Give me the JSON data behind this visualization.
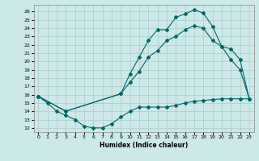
{
  "xlabel": "Humidex (Indice chaleur)",
  "bg_color": "#cce8e8",
  "grid_color": "#aacccc",
  "line_color": "#006666",
  "xlim": [
    -0.5,
    23.5
  ],
  "ylim": [
    11.5,
    26.8
  ],
  "xticks": [
    0,
    1,
    2,
    3,
    4,
    5,
    6,
    7,
    8,
    9,
    10,
    11,
    12,
    13,
    14,
    15,
    16,
    17,
    18,
    19,
    20,
    21,
    22,
    23
  ],
  "yticks": [
    12,
    13,
    14,
    15,
    16,
    17,
    18,
    19,
    20,
    21,
    22,
    23,
    24,
    25,
    26
  ],
  "line1_x": [
    0,
    1,
    2,
    3,
    4,
    5,
    6,
    7,
    8,
    9,
    10,
    11,
    12,
    13,
    14,
    15,
    16,
    17,
    18,
    19,
    20,
    21,
    22,
    23
  ],
  "line1_y": [
    15.8,
    15.0,
    14.0,
    13.5,
    13.0,
    12.2,
    12.0,
    12.0,
    12.5,
    13.3,
    14.0,
    14.5,
    14.5,
    14.5,
    14.5,
    14.7,
    15.0,
    15.2,
    15.3,
    15.4,
    15.5,
    15.5,
    15.5,
    15.5
  ],
  "line2_x": [
    0,
    3,
    9,
    10,
    11,
    12,
    13,
    14,
    15,
    16,
    17,
    18,
    19,
    20,
    21,
    22,
    23
  ],
  "line2_y": [
    15.8,
    14.0,
    16.1,
    18.5,
    20.5,
    22.5,
    23.8,
    23.8,
    25.3,
    25.7,
    26.2,
    25.8,
    24.2,
    21.8,
    20.2,
    19.0,
    15.5
  ],
  "line3_x": [
    0,
    3,
    9,
    10,
    11,
    12,
    13,
    14,
    15,
    16,
    17,
    18,
    19,
    20,
    21,
    22,
    23
  ],
  "line3_y": [
    15.8,
    14.0,
    16.1,
    17.5,
    18.8,
    20.5,
    21.3,
    22.5,
    23.0,
    23.8,
    24.3,
    24.0,
    22.5,
    21.8,
    21.5,
    20.2,
    15.5
  ]
}
